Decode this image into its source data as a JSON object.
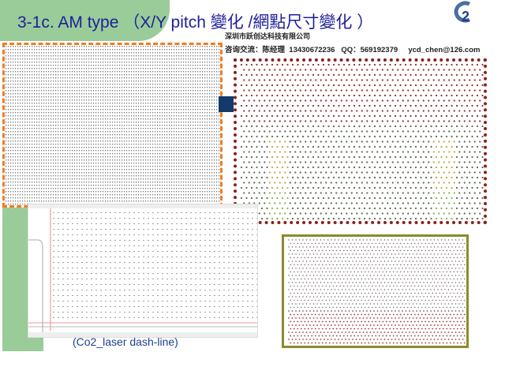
{
  "title": "3-1c. AM type （X/Y pitch 變化 /網點尺寸變化 ）",
  "company": "深圳市跃创达科技有限公司",
  "contact": "咨询交流：陈经理  13430672236   QQ：569192379     ycd_chen@126.com",
  "logo_text": "C2",
  "caption": "(Co2_laser dash-line)",
  "colors": {
    "title": "#1f1f99",
    "accent_green": "#99cc99",
    "orange_border": "#f07c20",
    "red_border": "#8b2020",
    "olive_border": "#8b8b2b"
  }
}
